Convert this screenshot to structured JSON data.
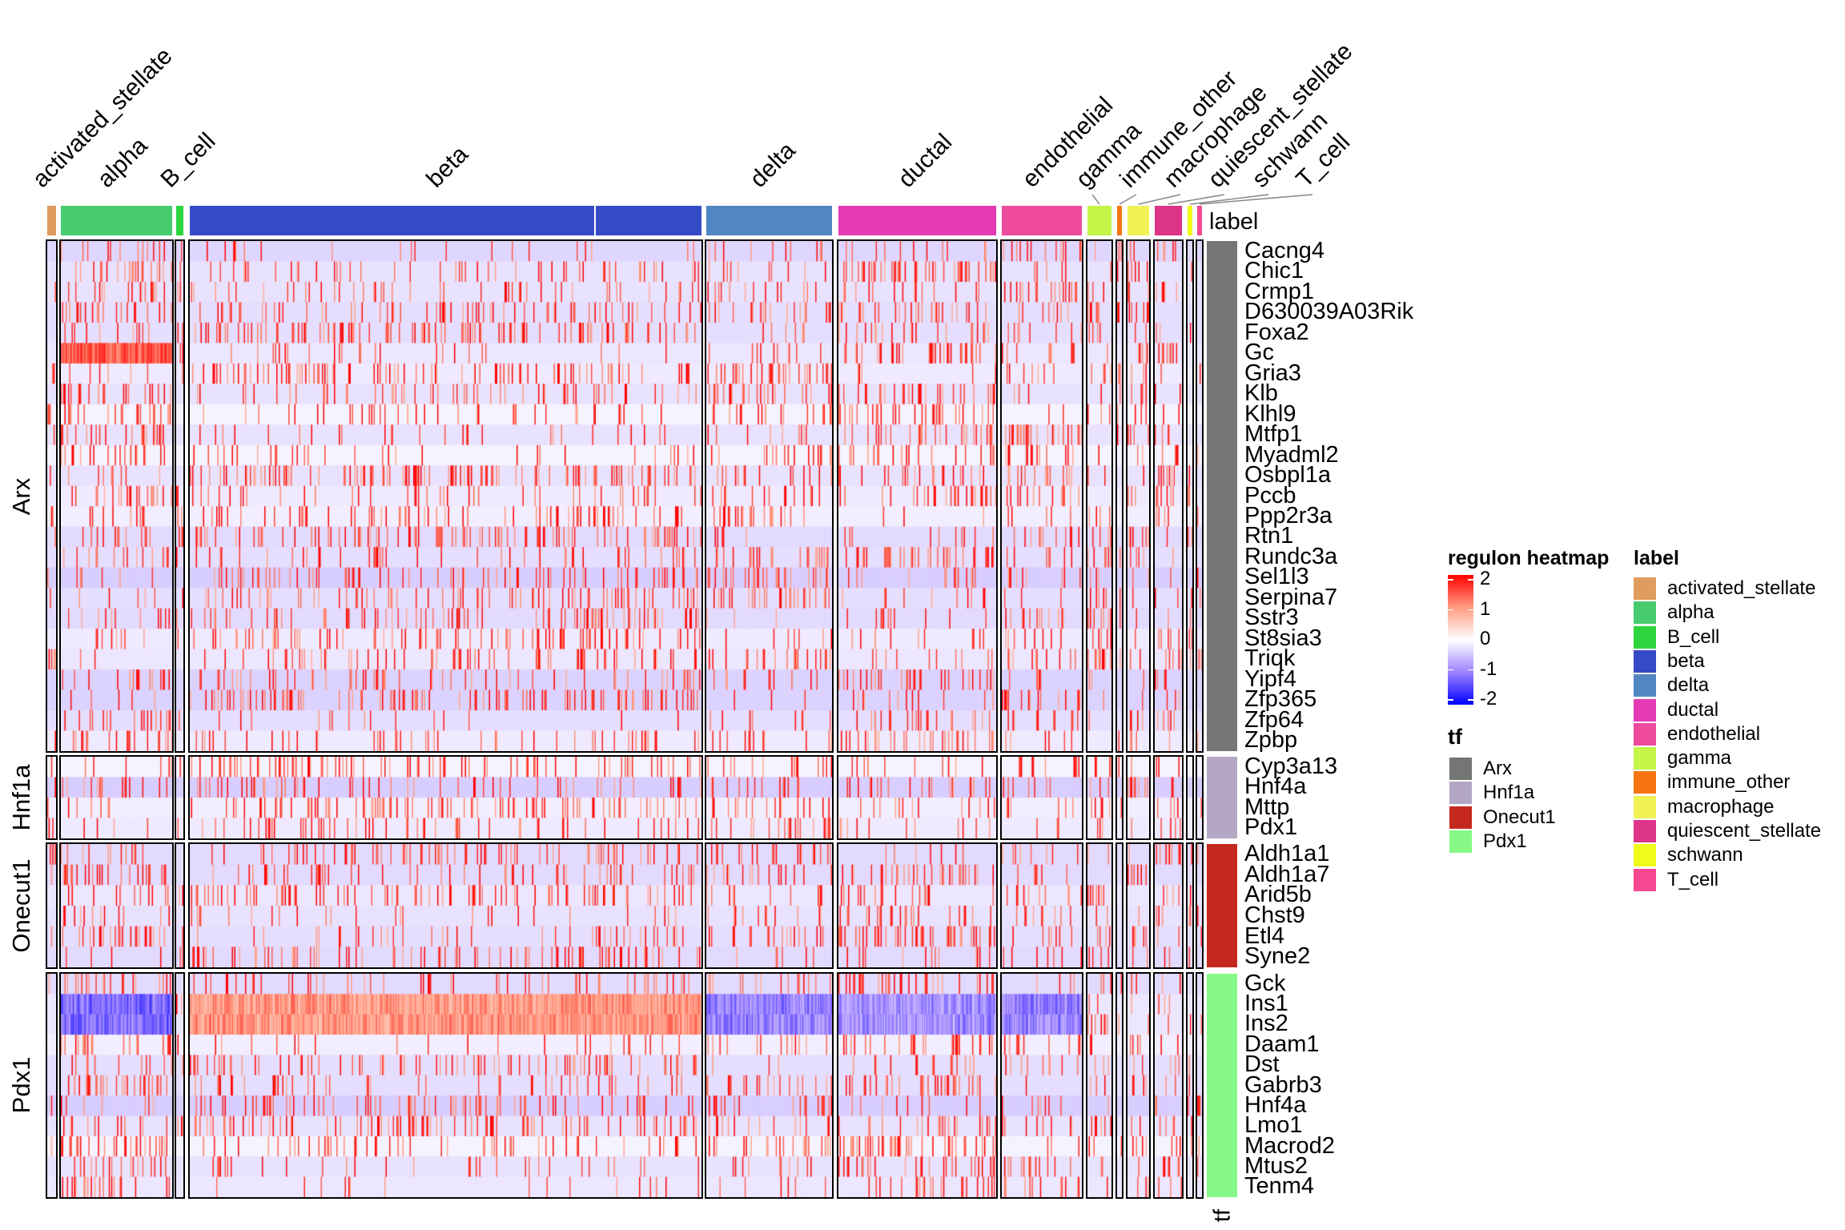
{
  "chart_data": {
    "type": "heatmap",
    "title": "",
    "column_annotation_title": "label",
    "row_annotation_title": "tf",
    "column_groups": [
      {
        "name": "activated_stellate",
        "color": "#E09C5F"
      },
      {
        "name": "alpha",
        "color": "#48CB6F"
      },
      {
        "name": "B_cell",
        "color": "#2ED53F"
      },
      {
        "name": "beta",
        "color": "#354BC6"
      },
      {
        "name": "delta",
        "color": "#5186C2"
      },
      {
        "name": "ductal",
        "color": "#E43BB3"
      },
      {
        "name": "endothelial",
        "color": "#EE4B9E"
      },
      {
        "name": "gamma",
        "color": "#C4F547"
      },
      {
        "name": "immune_other",
        "color": "#F67411"
      },
      {
        "name": "macrophage",
        "color": "#F0F255"
      },
      {
        "name": "quiescent_stellate",
        "color": "#DC3588"
      },
      {
        "name": "schwann",
        "color": "#F0FB1B"
      },
      {
        "name": "T_cell",
        "color": "#F84893"
      }
    ],
    "row_groups": [
      {
        "tf": "Arx",
        "color": "#737672",
        "rows": [
          "Cacng4",
          "Chic1",
          "Crmp1",
          "D630039A03Rik",
          "Foxa2",
          "Gc",
          "Gria3",
          "Klb",
          "Klhl9",
          "Mtfp1",
          "Myadml2",
          "Osbpl1a",
          "Pccb",
          "Ppp2r3a",
          "Rtn1",
          "Rundc3a",
          "Sel1l3",
          "Serpina7",
          "Sstr3",
          "St8sia3",
          "Triqk",
          "Yipf4",
          "Zfp365",
          "Zfp64",
          "Zpbp"
        ]
      },
      {
        "tf": "Hnf1a",
        "color": "#B4A7C4",
        "rows": [
          "Cyp3a13",
          "Hnf4a",
          "Mttp",
          "Pdx1"
        ]
      },
      {
        "tf": "Onecut1",
        "color": "#C5281D",
        "rows": [
          "Aldh1a1",
          "Aldh1a7",
          "Arid5b",
          "Chst9",
          "Etl4",
          "Syne2"
        ]
      },
      {
        "tf": "Pdx1",
        "color": "#86F885",
        "rows": [
          "Gck",
          "Ins1",
          "Ins2",
          "Daam1",
          "Dst",
          "Gabrb3",
          "Hnf4a",
          "Lmo1",
          "Macrod2",
          "Mtus2",
          "Tenm4"
        ]
      }
    ],
    "color_scale": {
      "title": "regulon heatmap",
      "breaks": [
        2,
        1,
        0,
        -1,
        -2
      ],
      "break_labels": [
        "2",
        "1",
        "0",
        "-1",
        "-2"
      ],
      "colors": [
        "#FF0000",
        "#FF9C83",
        "#FFFFFF",
        "#9E83FF",
        "#0000FF"
      ]
    },
    "notable_patterns": {
      "Ins1": {
        "beta": 1.0,
        "alpha": -1.2,
        "delta": -1.0,
        "ductal": -0.9,
        "endothelial": -1.0
      },
      "Ins2": {
        "beta": 1.0,
        "alpha": -1.2,
        "delta": -1.0,
        "ductal": -0.9,
        "endothelial": -1.0
      },
      "Gc": {
        "alpha": 1.5
      }
    },
    "legend_placement": "right"
  }
}
